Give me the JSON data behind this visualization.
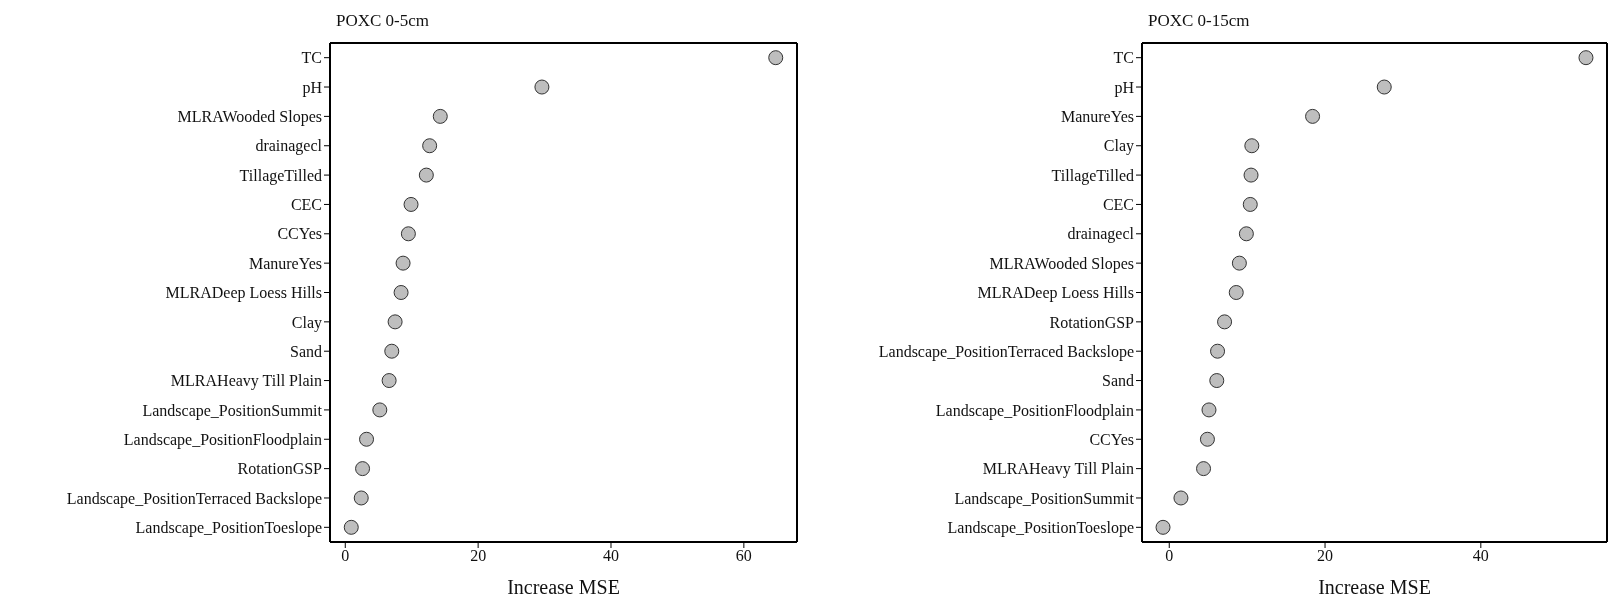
{
  "chart_data": [
    {
      "type": "scatter",
      "title": "POXC 0-5cm",
      "xlabel": "Increase MSE",
      "marker": "circle",
      "categories": [
        "TC",
        "pH",
        "MLRAWooded Slopes",
        "drainagecl",
        "TillageTilled",
        "CEC",
        "CCYes",
        "ManureYes",
        "MLRADeep Loess Hills",
        "Clay",
        "Sand",
        "MLRAHeavy Till Plain",
        "Landscape_PositionSummit",
        "Landscape_PositionFloodplain",
        "RotationGSP",
        "Landscape_PositionTerraced Backslope",
        "Landscape_PositionToeslope"
      ],
      "orientation": "horizontal",
      "series": [
        {
          "color": "#bebebe",
          "values": [
            64.8,
            29.6,
            14.3,
            12.7,
            12.2,
            9.9,
            9.5,
            8.7,
            8.4,
            7.5,
            7.0,
            6.6,
            5.2,
            3.2,
            2.6,
            2.4,
            0.9
          ]
        }
      ],
      "xlim": [
        -2.3,
        68
      ],
      "xticks": [
        0,
        20,
        40,
        60
      ]
    },
    {
      "type": "scatter",
      "title": "POXC 0-15cm",
      "xlabel": "Increase MSE",
      "marker": "circle",
      "categories": [
        "TC",
        "pH",
        "ManureYes",
        "Clay",
        "TillageTilled",
        "CEC",
        "drainagecl",
        "MLRAWooded Slopes",
        "MLRADeep Loess Hills",
        "RotationGSP",
        "Landscape_PositionTerraced Backslope",
        "Sand",
        "Landscape_PositionFloodplain",
        "CCYes",
        "MLRAHeavy Till Plain",
        "Landscape_PositionSummit",
        "Landscape_PositionToeslope"
      ],
      "orientation": "horizontal",
      "series": [
        {
          "color": "#bebebe",
          "values": [
            53.5,
            27.6,
            18.4,
            10.6,
            10.5,
            10.4,
            9.9,
            9.0,
            8.6,
            7.1,
            6.2,
            6.1,
            5.1,
            4.9,
            4.4,
            1.5,
            -0.8
          ]
        }
      ],
      "xlim": [
        -3.5,
        56.2
      ],
      "xticks": [
        0,
        20,
        40
      ]
    }
  ]
}
